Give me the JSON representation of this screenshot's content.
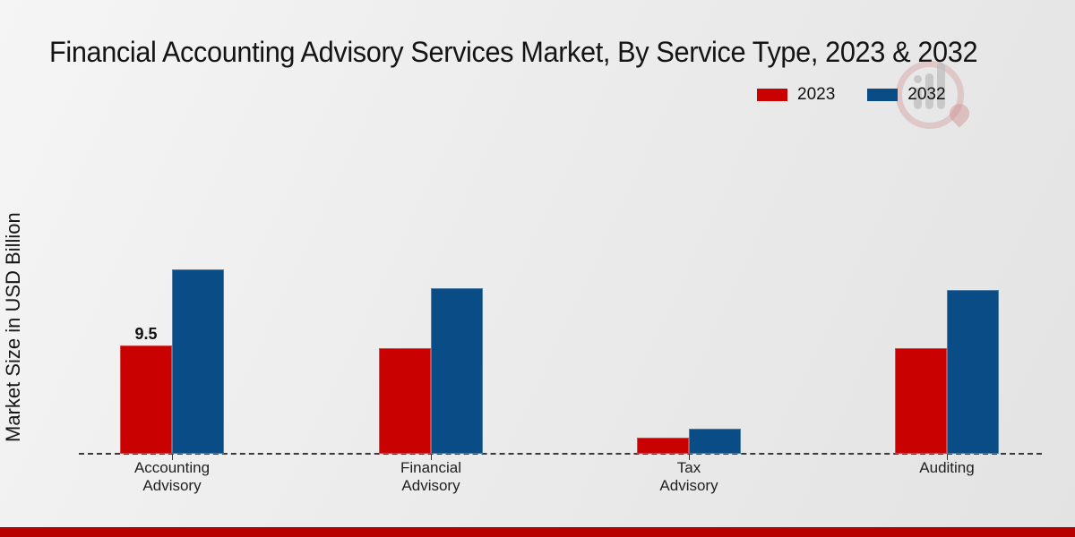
{
  "title": "Financial Accounting Advisory Services Market, By Service Type, 2023 & 2032",
  "legend": {
    "items": [
      {
        "label": "2023",
        "color": "#c90101"
      },
      {
        "label": "2032",
        "color": "#0a4c85"
      }
    ]
  },
  "icons": {
    "watermark": "bar-chart-logo-watermark"
  },
  "footer_bar_color": "#b70101",
  "chart_data": {
    "type": "bar",
    "title": "Financial Accounting Advisory Services Market, By Service Type, 2023 & 2032",
    "xlabel": "",
    "ylabel": "Market Size in USD Billion",
    "categories": [
      "Accounting Advisory",
      "Financial Advisory",
      "Tax Advisory",
      "Auditing"
    ],
    "category_label_lines": [
      [
        "Accounting",
        "Advisory"
      ],
      [
        "Financial",
        "Advisory"
      ],
      [
        "Tax",
        "Advisory"
      ],
      [
        "Auditing"
      ]
    ],
    "series": [
      {
        "name": "2023",
        "color": "#c90101",
        "values": [
          9.5,
          9.3,
          1.4,
          9.3
        ]
      },
      {
        "name": "2032",
        "color": "#0a4c85",
        "values": [
          16.2,
          14.5,
          2.2,
          14.4
        ]
      }
    ],
    "data_labels": [
      {
        "series_index": 0,
        "category_index": 0,
        "text": "9.5"
      }
    ],
    "ylim": [
      0,
      18
    ],
    "grid": false,
    "legend_position": "top-right",
    "axis_line_style": "dashed-baseline-only"
  }
}
